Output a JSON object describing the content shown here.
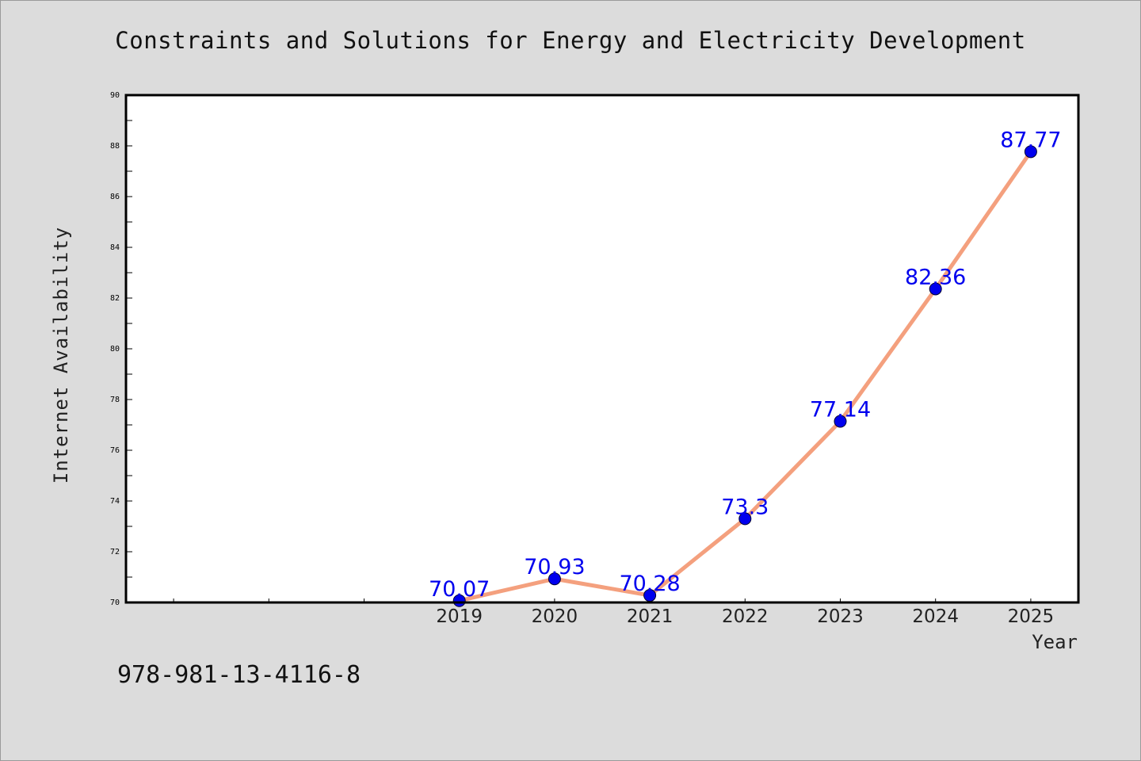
{
  "chart_data": {
    "type": "line",
    "title": "Constraints and Solutions for Energy and Electricity Development",
    "xlabel": "Year",
    "ylabel": "Internet Availability",
    "x": [
      "2019",
      "2020",
      "2021",
      "2022",
      "2023",
      "2024",
      "2025"
    ],
    "y": [
      70.07,
      70.93,
      70.28,
      73.3,
      77.14,
      82.36,
      87.77
    ],
    "data_labels": [
      "70.07",
      "70.93",
      "70.28",
      "73.3",
      "77.14",
      "82.36",
      "87.77"
    ],
    "ylim": [
      70,
      90
    ],
    "y_ticks": [
      "70",
      "72",
      "74",
      "76",
      "78",
      "80",
      "82",
      "84",
      "86",
      "88",
      "90"
    ],
    "grid": false,
    "line_color": "#f4a07e",
    "marker_color": "#0000ee",
    "label_color": "#0000ee"
  },
  "footer_text": "978-981-13-4116-8"
}
